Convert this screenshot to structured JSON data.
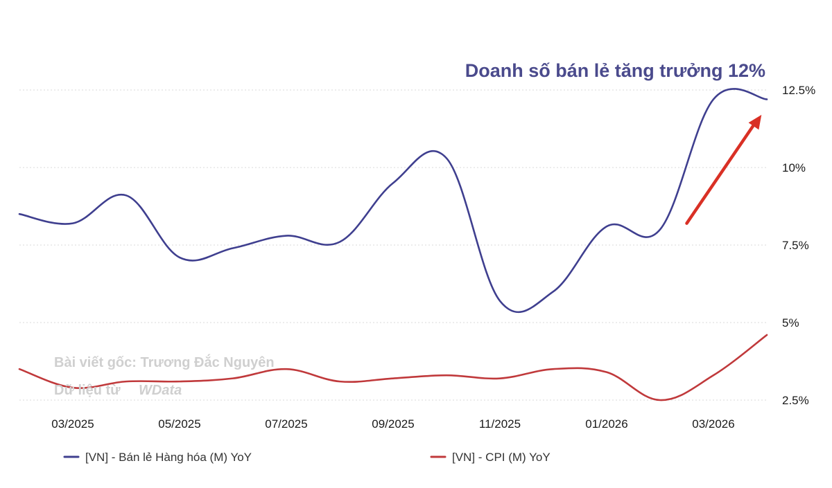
{
  "chart_data": {
    "type": "line",
    "title": "Doanh số bán lẻ tăng trưởng 12%",
    "x": [
      "02/2025",
      "03/2025",
      "04/2025",
      "05/2025",
      "06/2025",
      "07/2025",
      "08/2025",
      "09/2025",
      "10/2025",
      "11/2025",
      "12/2025",
      "01/2026",
      "02/2026",
      "03/2026",
      "04/2026"
    ],
    "x_tick_labels": [
      "03/2025",
      "05/2025",
      "07/2025",
      "09/2025",
      "11/2025",
      "01/2026",
      "03/2026"
    ],
    "y_tick_labels": [
      "12.5%",
      "10%",
      "7.5%",
      "5%",
      "2.5%"
    ],
    "y_ticks": [
      12.5,
      10,
      7.5,
      5,
      2.5
    ],
    "ylim": [
      2.5,
      12.5
    ],
    "y_axis_side": "right",
    "grid": true,
    "legend_position": "bottom",
    "series": [
      {
        "name": "[VN] - Bán lẻ Hàng hóa (M) YoY",
        "color": "#3f3f8f",
        "values": [
          8.5,
          8.2,
          9.1,
          7.1,
          7.4,
          7.8,
          7.6,
          9.5,
          10.3,
          5.7,
          6.0,
          8.1,
          8.0,
          12.2,
          12.2
        ]
      },
      {
        "name": "[VN] - CPI (M) YoY",
        "color": "#c0393b",
        "values": [
          3.5,
          2.9,
          3.1,
          3.1,
          3.2,
          3.5,
          3.1,
          3.2,
          3.3,
          3.2,
          3.5,
          3.4,
          2.5,
          3.3,
          4.6
        ]
      }
    ],
    "annotation_arrow": {
      "from": [
        12.5,
        8.2
      ],
      "to": [
        13.9,
        11.7
      ],
      "color": "#d93025"
    }
  },
  "watermark": {
    "line1": "Bài viết gốc: Trương Đắc Nguyên",
    "line2_prefix": "Dữ liệu từ",
    "line2_logo": "WData"
  }
}
